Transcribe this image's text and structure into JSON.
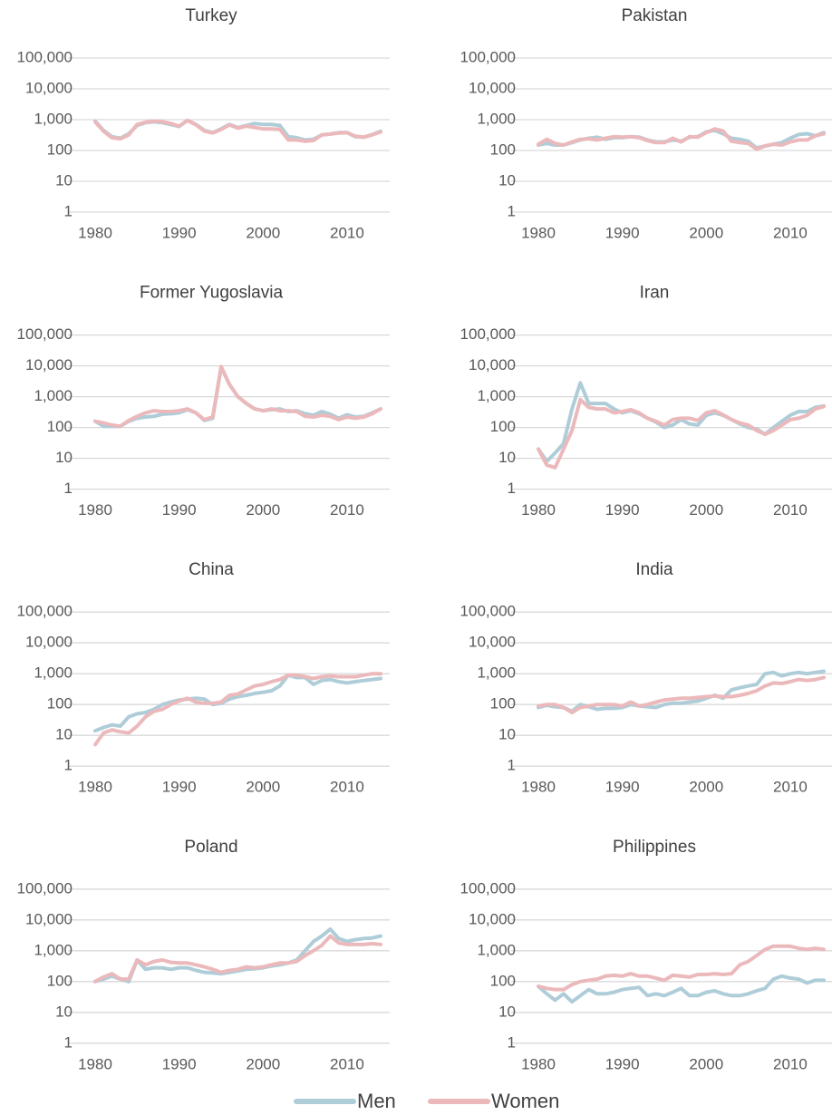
{
  "chart_data": [
    {
      "type": "line",
      "title": "Turkey",
      "log": true,
      "grid": true,
      "x": [
        1980,
        1981,
        1982,
        1983,
        1984,
        1985,
        1986,
        1987,
        1988,
        1989,
        1990,
        1991,
        1992,
        1993,
        1994,
        1995,
        1996,
        1997,
        1998,
        1999,
        2000,
        2001,
        2002,
        2003,
        2004,
        2005,
        2006,
        2007,
        2008,
        2009,
        2010,
        2011,
        2012,
        2013,
        2014
      ],
      "xlim": [
        1980,
        2014
      ],
      "xticks": [
        1980,
        1990,
        2000,
        2010
      ],
      "ylim": [
        1,
        100000
      ],
      "yticks": [
        1,
        10,
        100,
        {
          "value": 1000,
          "label": "1,000"
        },
        {
          "value": 10000,
          "label": "10,000"
        },
        {
          "value": 100000,
          "label": "100,000"
        }
      ],
      "series": [
        {
          "name": "Men",
          "color": "#aecdd8",
          "values": [
            900,
            450,
            280,
            250,
            350,
            650,
            800,
            850,
            800,
            700,
            600,
            950,
            700,
            450,
            380,
            500,
            700,
            550,
            650,
            750,
            700,
            700,
            650,
            280,
            260,
            220,
            230,
            320,
            340,
            380,
            380,
            280,
            270,
            330,
            420
          ]
        },
        {
          "name": "Women",
          "color": "#ebb9bb",
          "values": [
            850,
            420,
            260,
            240,
            320,
            700,
            820,
            900,
            850,
            750,
            620,
            950,
            680,
            430,
            370,
            480,
            680,
            530,
            620,
            560,
            500,
            500,
            480,
            220,
            220,
            200,
            210,
            320,
            340,
            370,
            380,
            290,
            270,
            320,
            400
          ]
        }
      ]
    },
    {
      "type": "line",
      "title": "Pakistan",
      "log": true,
      "grid": true,
      "x": [
        1980,
        1981,
        1982,
        1983,
        1984,
        1985,
        1986,
        1987,
        1988,
        1989,
        1990,
        1991,
        1992,
        1993,
        1994,
        1995,
        1996,
        1997,
        1998,
        1999,
        2000,
        2001,
        2002,
        2003,
        2004,
        2005,
        2006,
        2007,
        2008,
        2009,
        2010,
        2011,
        2012,
        2013,
        2014
      ],
      "xlim": [
        1980,
        2014
      ],
      "xticks": [
        1980,
        1990,
        2000,
        2010
      ],
      "ylim": [
        1,
        100000
      ],
      "yticks": [
        1,
        10,
        100,
        {
          "value": 1000,
          "label": "1,000"
        },
        {
          "value": 10000,
          "label": "10,000"
        },
        {
          "value": 100000,
          "label": "100,000"
        }
      ],
      "series": [
        {
          "color": "#aecdd8",
          "values": [
            150,
            170,
            150,
            150,
            180,
            220,
            250,
            270,
            230,
            260,
            260,
            280,
            270,
            220,
            190,
            190,
            220,
            200,
            270,
            280,
            400,
            450,
            350,
            250,
            230,
            200,
            120,
            140,
            160,
            180,
            250,
            330,
            350,
            300,
            380
          ]
        },
        {
          "color": "#ebb9bb",
          "values": [
            160,
            230,
            170,
            150,
            190,
            230,
            240,
            220,
            250,
            280,
            270,
            280,
            260,
            210,
            180,
            180,
            250,
            190,
            280,
            270,
            380,
            500,
            430,
            200,
            180,
            170,
            110,
            140,
            160,
            150,
            190,
            220,
            220,
            300,
            350
          ]
        }
      ]
    },
    {
      "type": "line",
      "title": "Former Yugoslavia",
      "log": true,
      "grid": true,
      "x": [
        1980,
        1981,
        1982,
        1983,
        1984,
        1985,
        1986,
        1987,
        1988,
        1989,
        1990,
        1991,
        1992,
        1993,
        1994,
        1995,
        1996,
        1997,
        1998,
        1999,
        2000,
        2001,
        2002,
        2003,
        2004,
        2005,
        2006,
        2007,
        2008,
        2009,
        2010,
        2011,
        2012,
        2013,
        2014
      ],
      "xlim": [
        1980,
        2014
      ],
      "xticks": [
        1980,
        1990,
        2000,
        2010
      ],
      "ylim": [
        1,
        100000
      ],
      "yticks": [
        1,
        10,
        100,
        {
          "value": 1000,
          "label": "1,000"
        },
        {
          "value": 10000,
          "label": "10,000"
        },
        {
          "value": 100000,
          "label": "100,000"
        }
      ],
      "series": [
        {
          "color": "#aecdd8",
          "values": [
            160,
            110,
            110,
            110,
            160,
            200,
            220,
            230,
            270,
            280,
            300,
            380,
            300,
            170,
            200,
            9000,
            2500,
            1000,
            600,
            400,
            350,
            380,
            400,
            330,
            350,
            280,
            250,
            330,
            270,
            200,
            260,
            220,
            230,
            300,
            400
          ]
        },
        {
          "color": "#ebb9bb",
          "values": [
            160,
            140,
            120,
            110,
            170,
            230,
            300,
            350,
            330,
            330,
            350,
            400,
            300,
            180,
            220,
            9500,
            2500,
            1000,
            600,
            400,
            350,
            400,
            350,
            350,
            330,
            230,
            220,
            250,
            230,
            180,
            220,
            200,
            220,
            280,
            400
          ]
        }
      ]
    },
    {
      "type": "line",
      "title": "Iran",
      "log": true,
      "grid": true,
      "x": [
        1980,
        1981,
        1982,
        1983,
        1984,
        1985,
        1986,
        1987,
        1988,
        1989,
        1990,
        1991,
        1992,
        1993,
        1994,
        1995,
        1996,
        1997,
        1998,
        1999,
        2000,
        2001,
        2002,
        2003,
        2004,
        2005,
        2006,
        2007,
        2008,
        2009,
        2010,
        2011,
        2012,
        2013,
        2014
      ],
      "xlim": [
        1980,
        2014
      ],
      "xticks": [
        1980,
        1990,
        2000,
        2010
      ],
      "ylim": [
        1,
        100000
      ],
      "yticks": [
        1,
        10,
        100,
        {
          "value": 1000,
          "label": "1,000"
        },
        {
          "value": 10000,
          "label": "10,000"
        },
        {
          "value": 100000,
          "label": "100,000"
        }
      ],
      "series": [
        {
          "color": "#aecdd8",
          "values": [
            20,
            8,
            15,
            30,
            400,
            2800,
            600,
            600,
            600,
            400,
            300,
            350,
            280,
            200,
            150,
            100,
            120,
            180,
            130,
            120,
            250,
            300,
            250,
            180,
            130,
            100,
            90,
            60,
            100,
            160,
            250,
            330,
            330,
            450,
            500
          ]
        },
        {
          "color": "#ebb9bb",
          "values": [
            20,
            6,
            5,
            20,
            80,
            800,
            450,
            400,
            400,
            300,
            330,
            380,
            300,
            200,
            160,
            120,
            180,
            200,
            200,
            170,
            300,
            350,
            260,
            180,
            140,
            120,
            80,
            60,
            80,
            120,
            180,
            200,
            250,
            400,
            480
          ]
        }
      ]
    },
    {
      "type": "line",
      "title": "China",
      "log": true,
      "grid": true,
      "x": [
        1980,
        1981,
        1982,
        1983,
        1984,
        1985,
        1986,
        1987,
        1988,
        1989,
        1990,
        1991,
        1992,
        1993,
        1994,
        1995,
        1996,
        1997,
        1998,
        1999,
        2000,
        2001,
        2002,
        2003,
        2004,
        2005,
        2006,
        2007,
        2008,
        2009,
        2010,
        2011,
        2012,
        2013,
        2014
      ],
      "xlim": [
        1980,
        2014
      ],
      "xticks": [
        1980,
        1990,
        2000,
        2010
      ],
      "ylim": [
        1,
        100000
      ],
      "yticks": [
        1,
        10,
        100,
        {
          "value": 1000,
          "label": "1,000"
        },
        {
          "value": 10000,
          "label": "10,000"
        },
        {
          "value": 100000,
          "label": "100,000"
        }
      ],
      "series": [
        {
          "color": "#aecdd8",
          "values": [
            14,
            18,
            22,
            20,
            40,
            50,
            55,
            70,
            100,
            120,
            140,
            150,
            160,
            150,
            100,
            110,
            150,
            180,
            200,
            230,
            250,
            280,
            400,
            900,
            750,
            750,
            450,
            600,
            650,
            550,
            500,
            550,
            600,
            650,
            700
          ]
        },
        {
          "color": "#ebb9bb",
          "values": [
            5,
            12,
            15,
            13,
            12,
            20,
            40,
            60,
            70,
            100,
            130,
            160,
            120,
            110,
            110,
            120,
            200,
            220,
            300,
            400,
            450,
            550,
            650,
            900,
            900,
            800,
            700,
            800,
            850,
            800,
            800,
            800,
            900,
            1000,
            1000
          ]
        }
      ]
    },
    {
      "type": "line",
      "title": "India",
      "log": true,
      "grid": true,
      "x": [
        1980,
        1981,
        1982,
        1983,
        1984,
        1985,
        1986,
        1987,
        1988,
        1989,
        1990,
        1991,
        1992,
        1993,
        1994,
        1995,
        1996,
        1997,
        1998,
        1999,
        2000,
        2001,
        2002,
        2003,
        2004,
        2005,
        2006,
        2007,
        2008,
        2009,
        2010,
        2011,
        2012,
        2013,
        2014
      ],
      "xlim": [
        1980,
        2014
      ],
      "xticks": [
        1980,
        1990,
        2000,
        2010
      ],
      "ylim": [
        1,
        100000
      ],
      "yticks": [
        1,
        10,
        100,
        {
          "value": 1000,
          "label": "1,000"
        },
        {
          "value": 10000,
          "label": "10,000"
        },
        {
          "value": 100000,
          "label": "100,000"
        }
      ],
      "series": [
        {
          "color": "#aecdd8",
          "values": [
            80,
            95,
            85,
            80,
            60,
            100,
            85,
            70,
            75,
            75,
            80,
            100,
            90,
            85,
            80,
            100,
            110,
            110,
            120,
            130,
            160,
            200,
            160,
            300,
            350,
            400,
            450,
            1000,
            1100,
            850,
            1000,
            1100,
            1000,
            1100,
            1200
          ]
        },
        {
          "color": "#ebb9bb",
          "values": [
            90,
            100,
            100,
            80,
            55,
            80,
            90,
            100,
            100,
            100,
            90,
            120,
            90,
            100,
            120,
            140,
            150,
            160,
            160,
            170,
            180,
            190,
            180,
            180,
            200,
            230,
            280,
            400,
            500,
            480,
            550,
            650,
            600,
            650,
            750
          ]
        }
      ]
    },
    {
      "type": "line",
      "title": "Poland",
      "log": true,
      "grid": true,
      "x": [
        1980,
        1981,
        1982,
        1983,
        1984,
        1985,
        1986,
        1987,
        1988,
        1989,
        1990,
        1991,
        1992,
        1993,
        1994,
        1995,
        1996,
        1997,
        1998,
        1999,
        2000,
        2001,
        2002,
        2003,
        2004,
        2005,
        2006,
        2007,
        2008,
        2009,
        2010,
        2011,
        2012,
        2013,
        2014
      ],
      "xlim": [
        1980,
        2014
      ],
      "xticks": [
        1980,
        1990,
        2000,
        2010
      ],
      "ylim": [
        1,
        100000
      ],
      "yticks": [
        1,
        10,
        100,
        {
          "value": 1000,
          "label": "1,000"
        },
        {
          "value": 10000,
          "label": "10,000"
        },
        {
          "value": 100000,
          "label": "100,000"
        }
      ],
      "series": [
        {
          "color": "#aecdd8",
          "values": [
            100,
            120,
            150,
            120,
            100,
            500,
            250,
            280,
            280,
            250,
            280,
            280,
            230,
            200,
            190,
            180,
            200,
            220,
            250,
            260,
            280,
            320,
            350,
            400,
            500,
            1000,
            2000,
            3000,
            5000,
            2500,
            2000,
            2300,
            2500,
            2600,
            3000
          ]
        },
        {
          "color": "#ebb9bb",
          "values": [
            100,
            140,
            180,
            120,
            120,
            500,
            350,
            450,
            500,
            420,
            400,
            400,
            350,
            300,
            250,
            200,
            230,
            250,
            300,
            280,
            300,
            350,
            400,
            400,
            450,
            700,
            1000,
            1500,
            3000,
            1800,
            1600,
            1600,
            1600,
            1700,
            1600
          ]
        }
      ]
    },
    {
      "type": "line",
      "title": "Philippines",
      "log": true,
      "grid": true,
      "x": [
        1980,
        1981,
        1982,
        1983,
        1984,
        1985,
        1986,
        1987,
        1988,
        1989,
        1990,
        1991,
        1992,
        1993,
        1994,
        1995,
        1996,
        1997,
        1998,
        1999,
        2000,
        2001,
        2002,
        2003,
        2004,
        2005,
        2006,
        2007,
        2008,
        2009,
        2010,
        2011,
        2012,
        2013,
        2014
      ],
      "xlim": [
        1980,
        2014
      ],
      "xticks": [
        1980,
        1990,
        2000,
        2010
      ],
      "ylim": [
        1,
        100000
      ],
      "yticks": [
        1,
        10,
        100,
        {
          "value": 1000,
          "label": "1,000"
        },
        {
          "value": 10000,
          "label": "10,000"
        },
        {
          "value": 100000,
          "label": "100,000"
        }
      ],
      "series": [
        {
          "color": "#aecdd8",
          "values": [
            70,
            40,
            25,
            40,
            22,
            35,
            55,
            40,
            40,
            45,
            55,
            60,
            65,
            35,
            40,
            35,
            45,
            60,
            35,
            35,
            45,
            50,
            40,
            35,
            35,
            40,
            50,
            60,
            120,
            150,
            130,
            120,
            90,
            110,
            110
          ]
        },
        {
          "color": "#ebb9bb",
          "values": [
            70,
            60,
            55,
            55,
            80,
            100,
            110,
            120,
            150,
            160,
            150,
            180,
            150,
            150,
            130,
            110,
            160,
            150,
            140,
            170,
            170,
            180,
            170,
            180,
            350,
            450,
            700,
            1100,
            1400,
            1400,
            1400,
            1200,
            1100,
            1200,
            1100
          ]
        }
      ]
    }
  ]
}
